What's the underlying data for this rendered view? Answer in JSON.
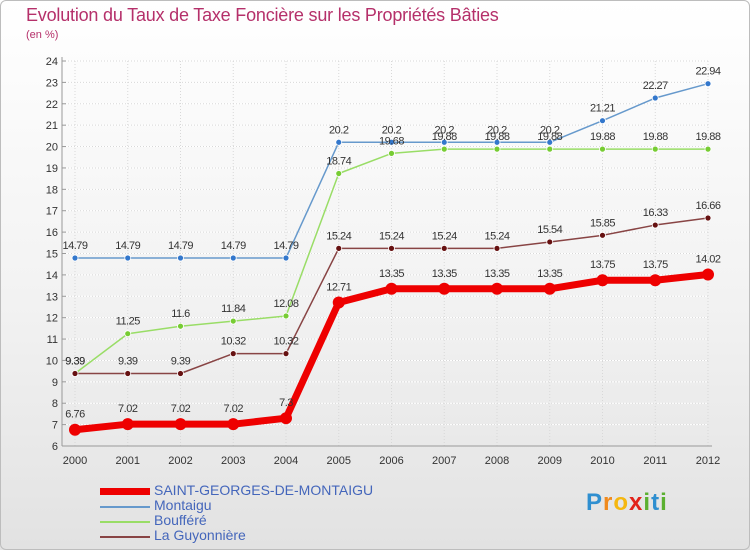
{
  "title": "Evolution du Taux de Taxe Foncière sur les Propriétés Bâties",
  "unit": "(en %)",
  "logo": "Proxiti",
  "logo_letters": [
    {
      "ch": "P",
      "color": "#2f8fd0"
    },
    {
      "ch": "r",
      "color": "#f08a1c"
    },
    {
      "ch": "o",
      "color": "#f5b70f"
    },
    {
      "ch": "x",
      "color": "#e2231a"
    },
    {
      "ch": "i",
      "color": "#5bb030"
    },
    {
      "ch": "t",
      "color": "#2f8fd0"
    },
    {
      "ch": "i",
      "color": "#5bb030"
    }
  ],
  "chart_data": {
    "type": "line",
    "title": "Evolution du Taux de Taxe Foncière sur les Propriétés Bâties",
    "ylabel": "(en %)",
    "xlabel": "",
    "ylim": [
      6,
      24
    ],
    "yticks": [
      "6",
      "7",
      "8",
      "9",
      "10",
      "11",
      "12",
      "13",
      "14",
      "15",
      "16",
      "17",
      "18",
      "19",
      "20",
      "21",
      "22",
      "23",
      "24"
    ],
    "grid": true,
    "legend_position": "bottom-left",
    "categories": [
      "2000",
      "2001",
      "2002",
      "2003",
      "2004",
      "2005",
      "2006",
      "2007",
      "2008",
      "2009",
      "2010",
      "2011",
      "2012"
    ],
    "series": [
      {
        "name": "Montaigu",
        "color": "#6699cc",
        "marker": "#3377cc",
        "thick": false,
        "values": [
          14.79,
          14.79,
          14.79,
          14.79,
          14.79,
          20.2,
          20.2,
          20.2,
          20.2,
          20.2,
          21.21,
          22.27,
          22.94
        ],
        "labels": [
          "14.79",
          "14.79",
          "14.79",
          "14.79",
          "14.79",
          "20.2",
          "20.2",
          "20.2",
          "20.2",
          "20.2",
          "21.21",
          "22.27",
          "22.94"
        ]
      },
      {
        "name": "Boufféré",
        "color": "#99dd66",
        "marker": "#77cc33",
        "thick": false,
        "values": [
          9.39,
          11.25,
          11.6,
          11.84,
          12.08,
          18.74,
          19.68,
          19.88,
          19.88,
          19.88,
          19.88,
          19.88,
          19.88
        ],
        "labels": [
          "9.39",
          "11.25",
          "11.6",
          "11.84",
          "12.08",
          "18.74",
          "19.68",
          "19.88",
          "19.88",
          "19.88",
          "19.88",
          "19.88",
          "19.88"
        ]
      },
      {
        "name": "La Guyonnière",
        "color": "#884444",
        "marker": "#661111",
        "thick": false,
        "values": [
          9.39,
          9.39,
          9.39,
          10.32,
          10.32,
          15.24,
          15.24,
          15.24,
          15.24,
          15.54,
          15.85,
          16.33,
          16.66
        ],
        "labels": [
          "9.39",
          "9.39",
          "9.39",
          "10.32",
          "10.32",
          "15.24",
          "15.24",
          "15.24",
          "15.24",
          "15.54",
          "15.85",
          "16.33",
          "16.66"
        ]
      },
      {
        "name": "SAINT-GEORGES-DE-MONTAIGU",
        "color": "#ee0000",
        "marker": "#ee0000",
        "thick": true,
        "values": [
          6.76,
          7.02,
          7.02,
          7.02,
          7.3,
          12.71,
          13.35,
          13.35,
          13.35,
          13.35,
          13.75,
          13.75,
          14.02
        ],
        "labels": [
          "6.76",
          "7.02",
          "7.02",
          "7.02",
          "7.3",
          "12.71",
          "13.35",
          "13.35",
          "13.35",
          "13.35",
          "13.75",
          "13.75",
          "14.02"
        ]
      }
    ],
    "legend": [
      {
        "name": "SAINT-GEORGES-DE-MONTAIGU",
        "color": "#ee0000",
        "thick": true
      },
      {
        "name": "Montaigu",
        "color": "#6699cc",
        "thick": false
      },
      {
        "name": "Boufféré",
        "color": "#99dd66",
        "thick": false
      },
      {
        "name": "La Guyonnière",
        "color": "#884444",
        "thick": false
      }
    ]
  }
}
